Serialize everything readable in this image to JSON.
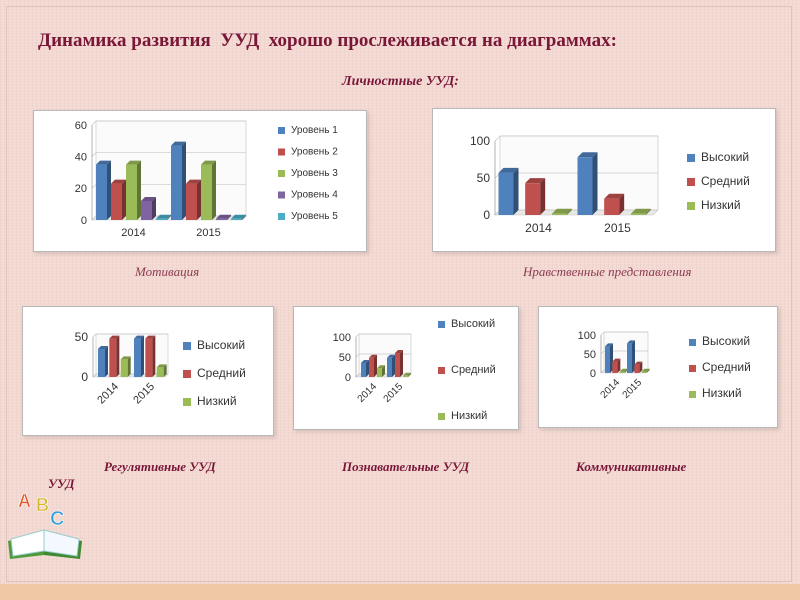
{
  "slide": {
    "title": "Динамика развития  УУД  хорошо прослеживается на диаграммах:",
    "subtitle": "Личностные УУД:",
    "captions": {
      "motivation": "Мотивация",
      "moral": "Нравственные представления",
      "regulative": "Регулятивные УУД",
      "cognitive": "Познавательные УУД",
      "communicative": "Коммуникативные",
      "uud": "УУД"
    },
    "logo_letters": [
      "A",
      "B",
      "C"
    ]
  },
  "colors": {
    "blue": "#4f81bd",
    "red": "#c0504d",
    "green": "#9bbb59",
    "purple": "#8064a2",
    "cyan": "#4bacc6"
  },
  "chart_data": [
    {
      "id": "motivation",
      "type": "bar",
      "categories": [
        "2014",
        "2015"
      ],
      "series": [
        {
          "name": "Уровень 1",
          "values": [
            35,
            47
          ]
        },
        {
          "name": "Уровень 2",
          "values": [
            23,
            23
          ]
        },
        {
          "name": "Уровень 3",
          "values": [
            35,
            35
          ]
        },
        {
          "name": "Уровень 4",
          "values": [
            12,
            0
          ]
        },
        {
          "name": "Уровень 5",
          "values": [
            0,
            0
          ]
        }
      ],
      "yticks": [
        0,
        20,
        40,
        60
      ],
      "ylim": [
        0,
        60
      ],
      "grid": true,
      "legend_position": "right"
    },
    {
      "id": "moral",
      "type": "bar",
      "categories": [
        "2014",
        "2015"
      ],
      "series": [
        {
          "name": "Высокий",
          "values": [
            57,
            78
          ]
        },
        {
          "name": "Средний",
          "values": [
            43,
            22
          ]
        },
        {
          "name": "Низкий",
          "values": [
            0,
            0
          ]
        }
      ],
      "yticks": [
        0,
        50,
        100
      ],
      "ylim": [
        0,
        100
      ],
      "grid": true,
      "legend_position": "right"
    },
    {
      "id": "regulative",
      "type": "bar",
      "categories": [
        "2014",
        "2015"
      ],
      "series": [
        {
          "name": "Высокий",
          "values": [
            35,
            48
          ]
        },
        {
          "name": "Средний",
          "values": [
            48,
            48
          ]
        },
        {
          "name": "Низкий",
          "values": [
            22,
            12
          ]
        }
      ],
      "yticks": [
        0,
        50
      ],
      "ylim": [
        0,
        50
      ],
      "grid": true,
      "legend_position": "right"
    },
    {
      "id": "cognitive",
      "type": "bar",
      "categories": [
        "2014",
        "2015"
      ],
      "series": [
        {
          "name": "Высокий",
          "values": [
            35,
            48
          ]
        },
        {
          "name": "Средний",
          "values": [
            48,
            60
          ]
        },
        {
          "name": "Низкий",
          "values": [
            22,
            0
          ]
        }
      ],
      "yticks": [
        0,
        50,
        100
      ],
      "ylim": [
        0,
        100
      ],
      "grid": true,
      "legend_position": "right"
    },
    {
      "id": "communicative",
      "type": "bar",
      "categories": [
        "2014",
        "2015"
      ],
      "series": [
        {
          "name": "Высокий",
          "values": [
            70,
            78
          ]
        },
        {
          "name": "Средний",
          "values": [
            30,
            22
          ]
        },
        {
          "name": "Низкий",
          "values": [
            0,
            0
          ]
        }
      ],
      "yticks": [
        0,
        50,
        100
      ],
      "ylim": [
        0,
        100
      ],
      "grid": true,
      "legend_position": "right"
    }
  ]
}
